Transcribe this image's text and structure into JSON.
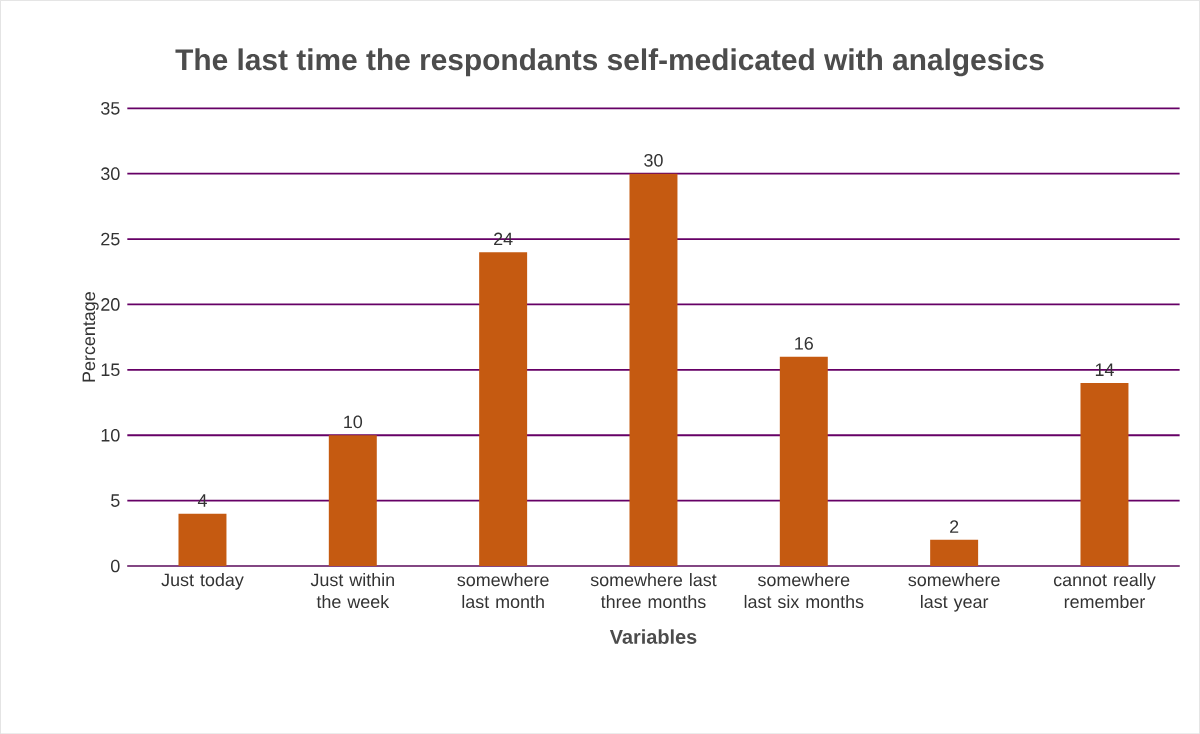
{
  "chart_data": {
    "type": "bar",
    "title": "The last time the respondants self-medicated with analgesics",
    "xlabel": "Variables",
    "ylabel": "Percentage",
    "categories": [
      "Just today",
      "Just within the week",
      "somewhere last month",
      "somewhere last three months",
      "somewhere last six months",
      "somewhere last year",
      "cannot really remember"
    ],
    "values": [
      4,
      10,
      24,
      30,
      16,
      2,
      14
    ],
    "color": "#c55a11",
    "ylim": [
      0,
      35
    ],
    "yticks": [
      0,
      5,
      10,
      15,
      20,
      25,
      30,
      35
    ],
    "grid": "y",
    "data_labels": true
  }
}
